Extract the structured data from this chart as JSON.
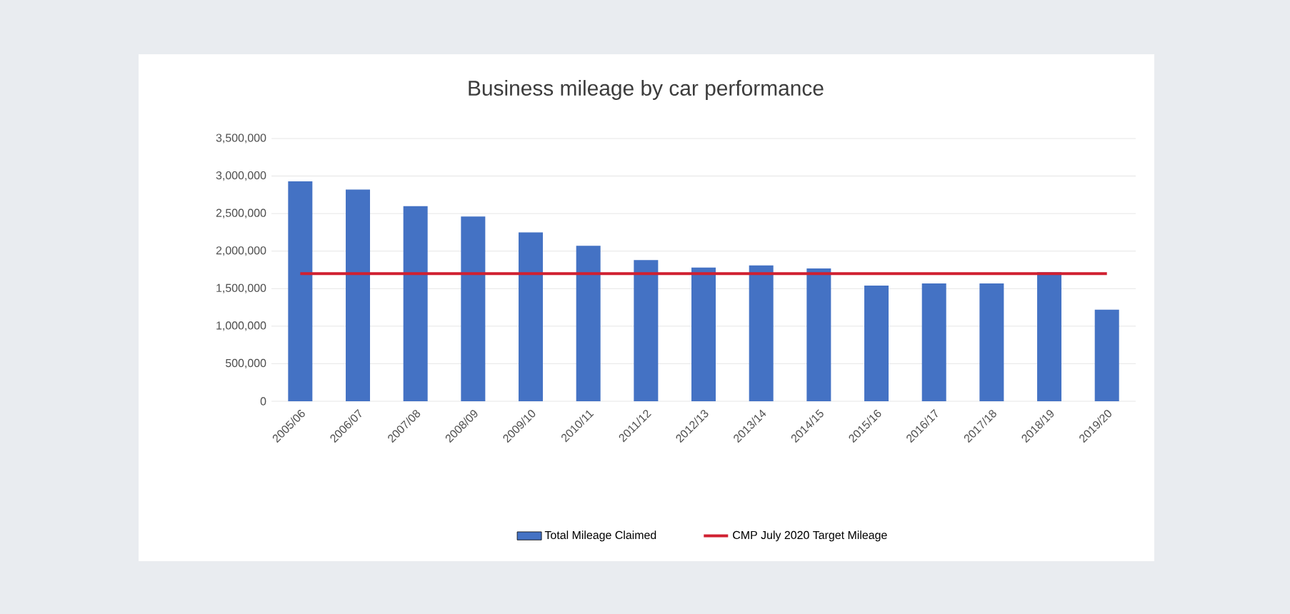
{
  "chart_data": {
    "type": "bar",
    "title": "Business mileage by car performance",
    "categories": [
      "2005/06",
      "2006/07",
      "2007/08",
      "2008/09",
      "2009/10",
      "2010/11",
      "2011/12",
      "2012/13",
      "2013/14",
      "2014/15",
      "2015/16",
      "2016/17",
      "2017/18",
      "2018/19",
      "2019/20"
    ],
    "series": [
      {
        "name": "Total Mileage Claimed",
        "color": "#4472c4",
        "values": [
          2930000,
          2820000,
          2600000,
          2460000,
          2250000,
          2070000,
          1880000,
          1780000,
          1810000,
          1770000,
          1540000,
          1570000,
          1570000,
          1720000,
          1220000
        ]
      },
      {
        "name": "CMP July 2020 Target Mileage",
        "type": "line",
        "color": "#d02030",
        "values": [
          1700000,
          1700000,
          1700000,
          1700000,
          1700000,
          1700000,
          1700000,
          1700000,
          1700000,
          1700000,
          1700000,
          1700000,
          1700000,
          1700000,
          1700000
        ]
      }
    ],
    "ylim": [
      0,
      3500000
    ],
    "yticks": [
      {
        "value": 0,
        "label": "0"
      },
      {
        "value": 500000,
        "label": "500,000"
      },
      {
        "value": 1000000,
        "label": "1,000,000"
      },
      {
        "value": 1500000,
        "label": "1,500,000"
      },
      {
        "value": 2000000,
        "label": "2,000,000"
      },
      {
        "value": 2500000,
        "label": "2,500,000"
      },
      {
        "value": 3000000,
        "label": "3,000,000"
      },
      {
        "value": 3500000,
        "label": "3,500,000"
      }
    ],
    "grid": "y",
    "legend": "bottom"
  }
}
